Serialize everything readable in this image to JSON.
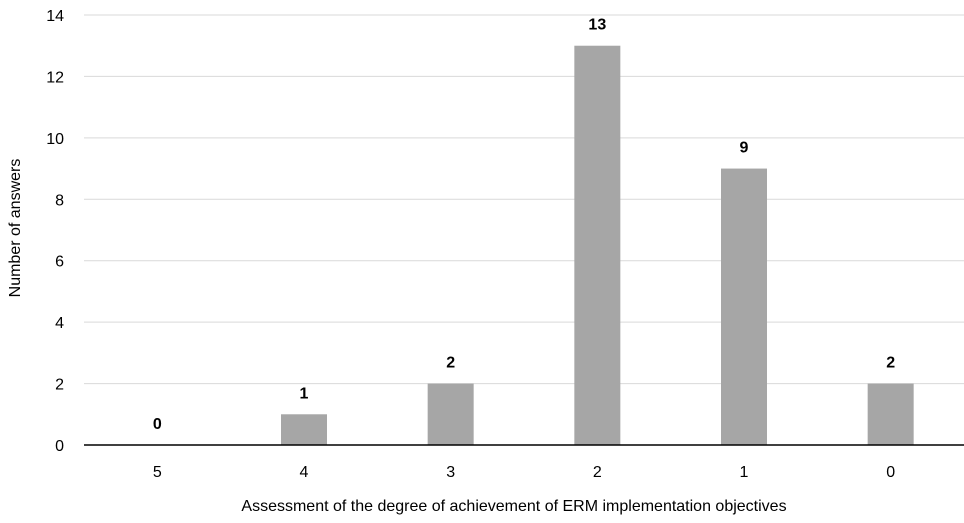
{
  "chart_data": {
    "type": "bar",
    "categories": [
      "5",
      "4",
      "3",
      "2",
      "1",
      "0"
    ],
    "values": [
      0,
      1,
      2,
      13,
      9,
      2
    ],
    "title": "",
    "xlabel": "Assessment of the degree of achievement of ERM implementation objectives",
    "ylabel": "Number of answers",
    "ylim": [
      0,
      14
    ],
    "yticks": [
      0,
      2,
      4,
      6,
      8,
      10,
      12,
      14
    ],
    "grid": true,
    "legend": "none",
    "bar_color": "#a6a6a6",
    "grid_color": "#d9d9d9",
    "axis_color": "#000000"
  }
}
